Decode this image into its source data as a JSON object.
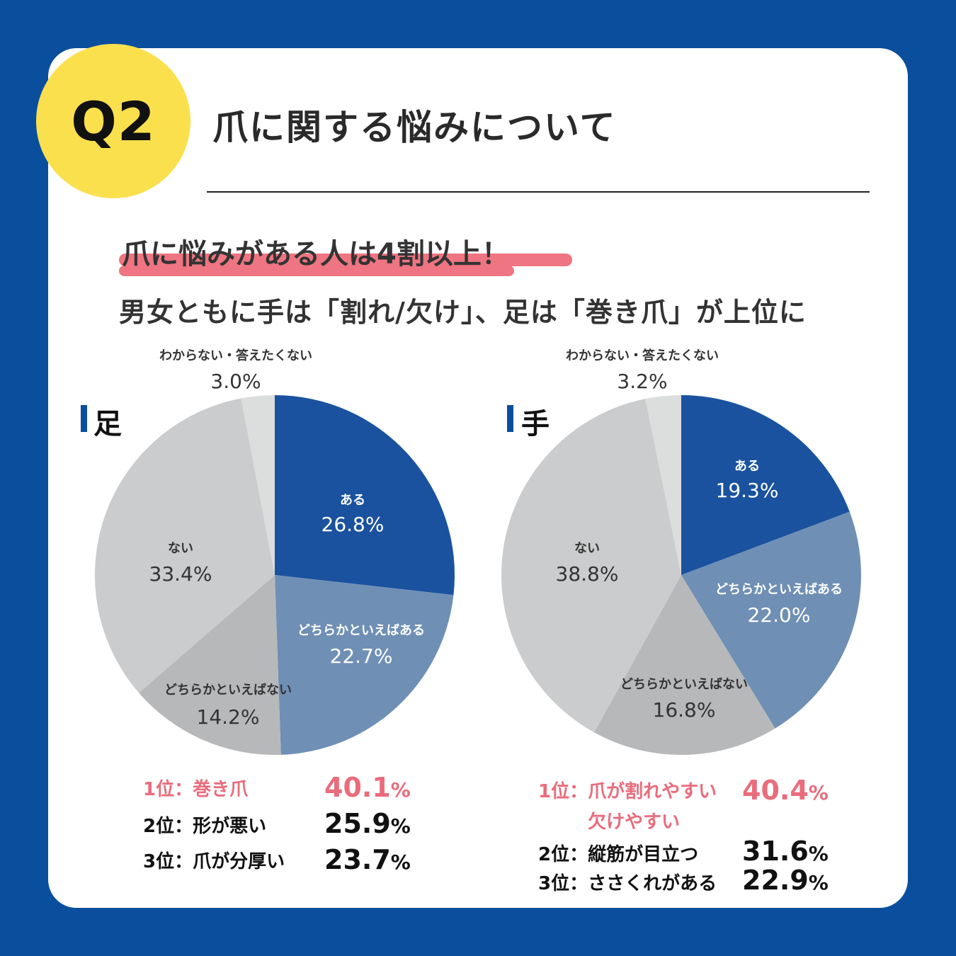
{
  "header": {
    "badge": "Q2",
    "title": "爪に関する悩みについて"
  },
  "headline": "爪に悩みがある人は4割以上！",
  "subline": "男女ともに手は「割れ/欠け」、足は「巻き爪」が上位に",
  "colors": {
    "frame": "#0a4f9e",
    "badge": "#fbe04e",
    "accent_pink": "#ea6c7c",
    "slice_aru": "#1a529f",
    "slice_docchi_aru": "#6f8fb5",
    "slice_docchi_nai": "#b7b8ba",
    "slice_nai": "#cbcccd",
    "slice_wakaranai": "#dcdddd"
  },
  "chart_data": [
    {
      "type": "pie",
      "title": "足",
      "start": "12 o'clock, clockwise",
      "categories": [
        "ある",
        "どちらかといえばある",
        "どちらかといえばない",
        "ない",
        "わからない・答えたくない"
      ],
      "values": [
        26.8,
        22.7,
        14.2,
        33.4,
        3.0
      ],
      "value_labels": [
        "26.8%",
        "22.7%",
        "14.2%",
        "33.4%",
        "3.0%"
      ],
      "ranking": [
        {
          "rank": "1位：巻き爪",
          "value": "40.1",
          "unit": "%"
        },
        {
          "rank": "2位：形が悪い",
          "value": "25.9",
          "unit": "%"
        },
        {
          "rank": "3位：爪が分厚い",
          "value": "23.7",
          "unit": "%"
        }
      ]
    },
    {
      "type": "pie",
      "title": "手",
      "start": "12 o'clock, clockwise",
      "categories": [
        "ある",
        "どちらかといえばある",
        "どちらかといえばない",
        "ない",
        "わからない・答えたくない"
      ],
      "values": [
        19.3,
        22.0,
        16.8,
        38.8,
        3.2
      ],
      "value_labels": [
        "19.3%",
        "22.0%",
        "16.8%",
        "38.8%",
        "3.2%"
      ],
      "ranking": [
        {
          "rank": "1位：爪が割れやすい",
          "rank_line2": "欠けやすい",
          "value": "40.4",
          "unit": "%"
        },
        {
          "rank": "2位：縦筋が目立つ",
          "value": "31.6",
          "unit": "%"
        },
        {
          "rank": "3位：ささくれがある",
          "value": "22.9",
          "unit": "%"
        }
      ]
    }
  ]
}
